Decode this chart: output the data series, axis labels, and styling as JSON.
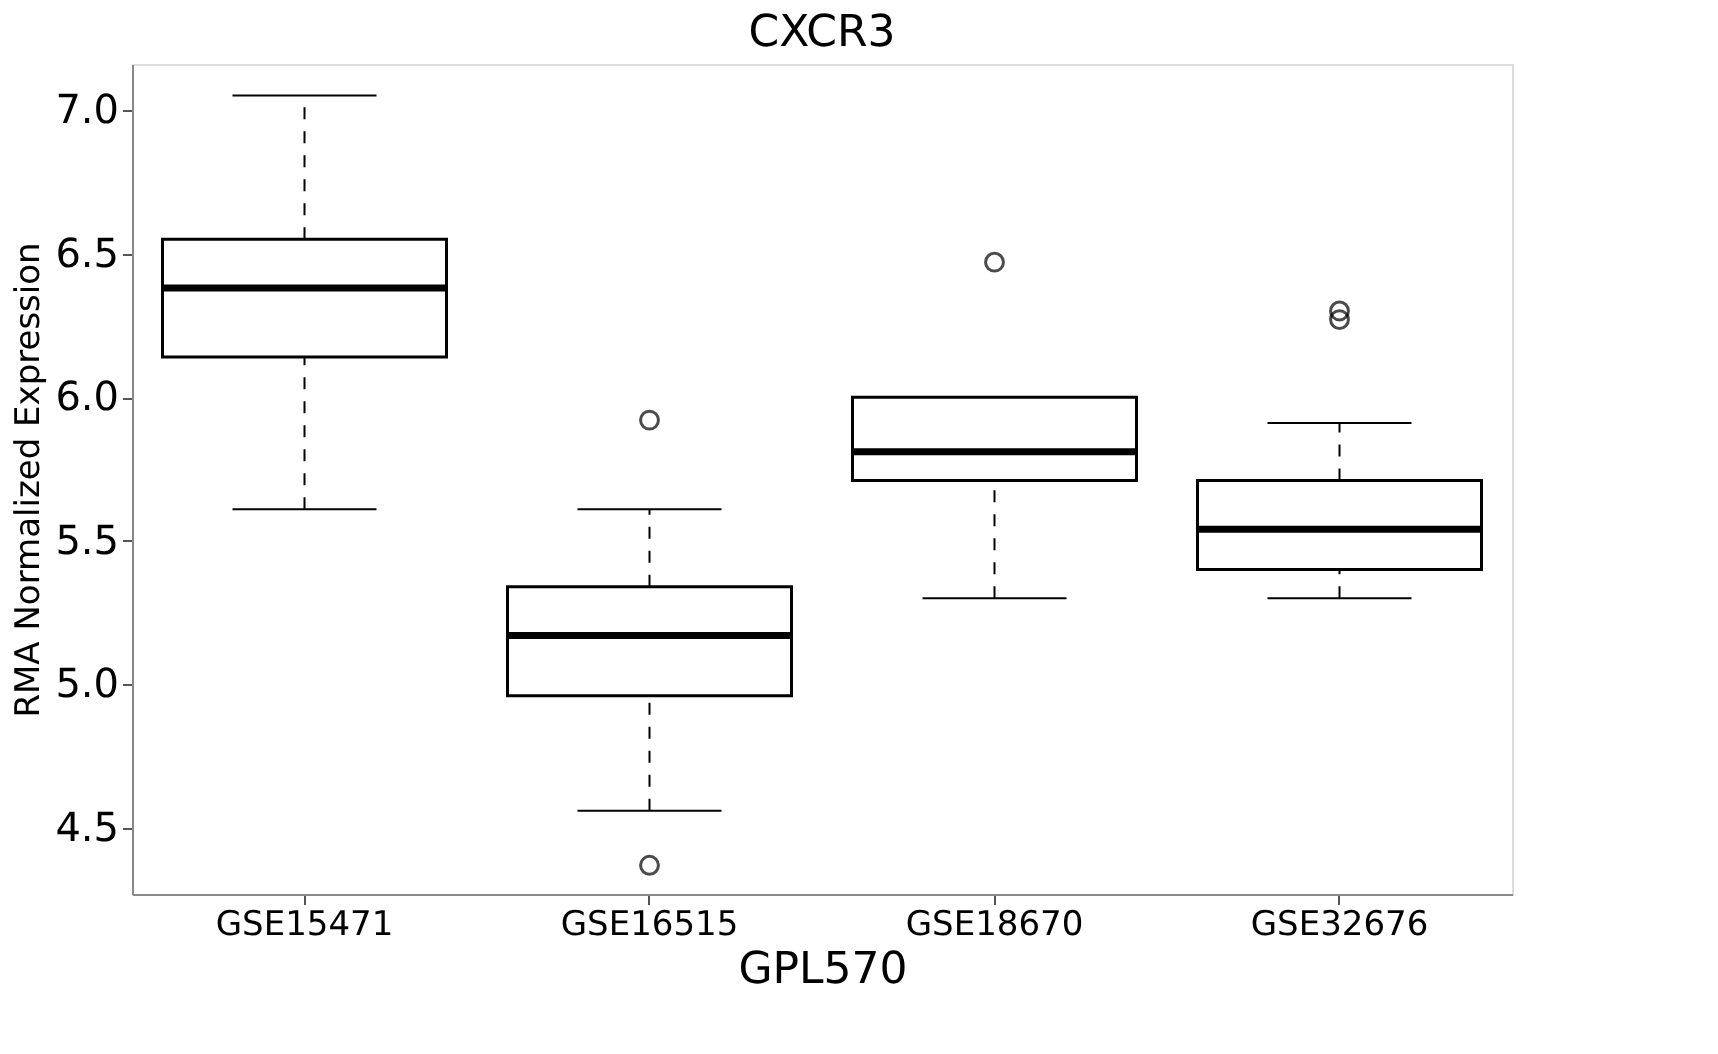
{
  "chart_data": {
    "type": "box",
    "title": "CXCR3",
    "ylabel": "RMA Normalized Expression",
    "xlabel": "GPL570",
    "categories": [
      "GSE15471",
      "GSE16515",
      "GSE18670",
      "GSE32676"
    ],
    "boxes": [
      {
        "low": 5.61,
        "q1": 6.14,
        "median": 6.38,
        "q3": 6.55,
        "high": 7.05
      },
      {
        "low": 4.56,
        "q1": 4.96,
        "median": 5.17,
        "q3": 5.34,
        "high": 5.61,
        "outliers": [
          5.92,
          4.37
        ]
      },
      {
        "low": 5.3,
        "q1": 5.71,
        "median": 5.81,
        "q3": 6.0,
        "high": 6.0,
        "outliers": [
          6.47
        ]
      },
      {
        "low": 5.3,
        "q1": 5.4,
        "median": 5.54,
        "q3": 5.71,
        "high": 5.91,
        "outliers": [
          6.3,
          6.27
        ]
      }
    ],
    "ylim": [
      4.27,
      7.16
    ],
    "yticks": [
      4.5,
      {
        "value": 5,
        "label": "5.0"
      },
      5.5,
      {
        "value": 6,
        "label": "6.0"
      },
      6.5,
      {
        "value": 7,
        "label": "7.0"
      }
    ],
    "grid": false,
    "color": "#000000"
  }
}
